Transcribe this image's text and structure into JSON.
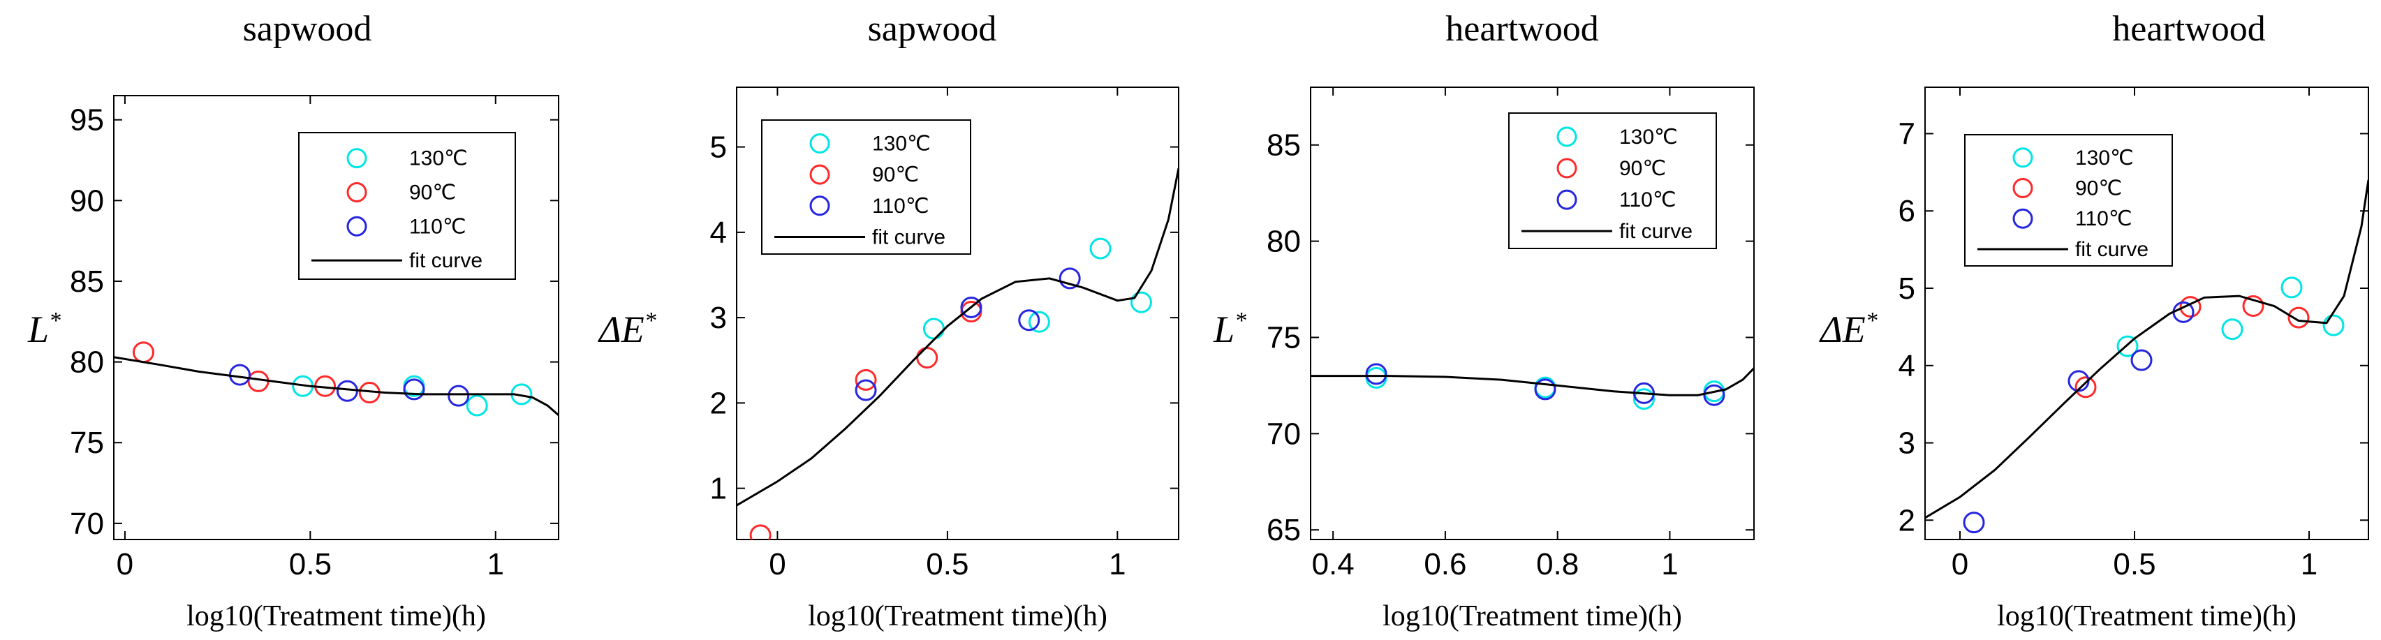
{
  "colors": {
    "c130": "#00e5e5",
    "c90": "#ff2a2a",
    "c110": "#2626e0",
    "fit": "#000000"
  },
  "chart_data": [
    {
      "type": "scatter",
      "title": "sapwood",
      "xlabel": "log10(Treatment time)(h)",
      "ylabel_main": "L",
      "ylabel_sup": "*",
      "xlim": [
        -0.03,
        1.17
      ],
      "ylim": [
        69,
        96.5
      ],
      "xticks": [
        0,
        0.5,
        1
      ],
      "xtick_labels": [
        "0",
        "0.5",
        "1"
      ],
      "yticks": [
        70,
        75,
        80,
        85,
        90,
        95
      ],
      "ytick_labels": [
        "70",
        "75",
        "80",
        "85",
        "90",
        "95"
      ],
      "legend": [
        "130℃",
        "90℃",
        "110℃",
        "fit curve"
      ],
      "legend_position": "top-right",
      "series": [
        {
          "name": "130℃",
          "color_key": "c130",
          "points": [
            [
              0.48,
              78.5
            ],
            [
              0.78,
              78.5
            ],
            [
              0.95,
              77.3
            ],
            [
              1.07,
              78.0
            ]
          ]
        },
        {
          "name": "90℃",
          "color_key": "c90",
          "points": [
            [
              0.05,
              80.6
            ],
            [
              0.36,
              78.8
            ],
            [
              0.54,
              78.5
            ],
            [
              0.66,
              78.1
            ]
          ]
        },
        {
          "name": "110℃",
          "color_key": "c110",
          "points": [
            [
              0.31,
              79.2
            ],
            [
              0.6,
              78.2
            ],
            [
              0.78,
              78.3
            ],
            [
              0.9,
              77.9
            ]
          ]
        },
        {
          "name": "fit curve",
          "color_key": "fit",
          "line": true,
          "points": [
            [
              -0.03,
              80.3
            ],
            [
              0.1,
              79.8
            ],
            [
              0.2,
              79.4
            ],
            [
              0.3,
              79.1
            ],
            [
              0.4,
              78.8
            ],
            [
              0.5,
              78.5
            ],
            [
              0.6,
              78.3
            ],
            [
              0.7,
              78.1
            ],
            [
              0.8,
              78.0
            ],
            [
              0.9,
              78.0
            ],
            [
              1.0,
              78.0
            ],
            [
              1.05,
              78.0
            ],
            [
              1.1,
              77.8
            ],
            [
              1.14,
              77.3
            ],
            [
              1.17,
              76.7
            ]
          ]
        }
      ]
    },
    {
      "type": "scatter",
      "title": "sapwood",
      "xlabel": "log10(Treatment time)(h)",
      "ylabel_main": "ΔE",
      "ylabel_sup": "*",
      "xlim": [
        -0.12,
        1.18
      ],
      "ylim": [
        0.4,
        5.7
      ],
      "xticks": [
        0,
        0.5,
        1
      ],
      "xtick_labels": [
        "0",
        "0.5",
        "1"
      ],
      "yticks": [
        1,
        2,
        3,
        4,
        5
      ],
      "ytick_labels": [
        "1",
        "2",
        "3",
        "4",
        "5"
      ],
      "legend": [
        "130℃",
        "90℃",
        "110℃",
        "fit curve"
      ],
      "legend_position": "top-left",
      "series": [
        {
          "name": "130℃",
          "color_key": "c130",
          "points": [
            [
              0.46,
              2.87
            ],
            [
              0.77,
              2.95
            ],
            [
              0.95,
              3.81
            ],
            [
              1.07,
              3.18
            ]
          ]
        },
        {
          "name": "90℃",
          "color_key": "c90",
          "points": [
            [
              -0.05,
              0.45
            ],
            [
              0.26,
              2.27
            ],
            [
              0.44,
              2.53
            ],
            [
              0.57,
              3.07
            ]
          ]
        },
        {
          "name": "110℃",
          "color_key": "c110",
          "points": [
            [
              0.26,
              2.15
            ],
            [
              0.57,
              3.12
            ],
            [
              0.74,
              2.97
            ],
            [
              0.86,
              3.46
            ]
          ]
        },
        {
          "name": "fit curve",
          "color_key": "fit",
          "line": true,
          "points": [
            [
              -0.12,
              0.8
            ],
            [
              0.0,
              1.08
            ],
            [
              0.1,
              1.35
            ],
            [
              0.2,
              1.7
            ],
            [
              0.3,
              2.08
            ],
            [
              0.4,
              2.5
            ],
            [
              0.5,
              2.9
            ],
            [
              0.6,
              3.22
            ],
            [
              0.7,
              3.42
            ],
            [
              0.8,
              3.46
            ],
            [
              0.9,
              3.35
            ],
            [
              1.0,
              3.2
            ],
            [
              1.05,
              3.23
            ],
            [
              1.1,
              3.55
            ],
            [
              1.15,
              4.15
            ],
            [
              1.18,
              4.75
            ]
          ]
        }
      ]
    },
    {
      "type": "scatter",
      "title": "heartwood",
      "xlabel": "log10(Treatment time)(h)",
      "ylabel_main": "L",
      "ylabel_sup": "*",
      "xlim": [
        0.36,
        1.15
      ],
      "ylim": [
        64.5,
        88
      ],
      "xticks": [
        0.4,
        0.6,
        0.8,
        1
      ],
      "xtick_labels": [
        "0.4",
        "0.6",
        "0.8",
        "1"
      ],
      "yticks": [
        65,
        70,
        75,
        80,
        85
      ],
      "ytick_labels": [
        "65",
        "70",
        "75",
        "80",
        "85"
      ],
      "legend": [
        "130℃",
        "90℃",
        "110℃",
        "fit curve"
      ],
      "legend_position": "top-right",
      "series": [
        {
          "name": "130℃",
          "color_key": "c130",
          "points": [
            [
              0.477,
              72.9
            ],
            [
              0.778,
              72.4
            ],
            [
              0.954,
              71.8
            ],
            [
              1.079,
              72.2
            ]
          ]
        },
        {
          "name": "90℃",
          "color_key": "c90",
          "points": []
        },
        {
          "name": "110℃",
          "color_key": "c110",
          "points": [
            [
              0.477,
              73.1
            ],
            [
              0.778,
              72.3
            ],
            [
              0.954,
              72.1
            ],
            [
              1.079,
              72.0
            ]
          ]
        },
        {
          "name": "fit curve",
          "color_key": "fit",
          "line": true,
          "points": [
            [
              0.36,
              73.0
            ],
            [
              0.5,
              73.0
            ],
            [
              0.6,
              72.95
            ],
            [
              0.7,
              72.8
            ],
            [
              0.8,
              72.5
            ],
            [
              0.9,
              72.2
            ],
            [
              1.0,
              72.0
            ],
            [
              1.05,
              72.0
            ],
            [
              1.1,
              72.3
            ],
            [
              1.13,
              72.8
            ],
            [
              1.15,
              73.4
            ]
          ]
        }
      ]
    },
    {
      "type": "scatter",
      "title": "heartwood",
      "xlabel": "log10(Treatment time)(h)",
      "ylabel_main": "ΔE",
      "ylabel_sup": "*",
      "xlim": [
        -0.1,
        1.17
      ],
      "ylim": [
        1.75,
        7.6
      ],
      "xticks": [
        0,
        0.5,
        1
      ],
      "xtick_labels": [
        "0",
        "0.5",
        "1"
      ],
      "yticks": [
        2,
        3,
        4,
        5,
        6,
        7
      ],
      "ytick_labels": [
        "2",
        "3",
        "4",
        "5",
        "6",
        "7"
      ],
      "legend": [
        "130℃",
        "90℃",
        "110℃",
        "fit curve"
      ],
      "legend_position": "top-left",
      "series": [
        {
          "name": "130℃",
          "color_key": "c130",
          "points": [
            [
              0.48,
              4.25
            ],
            [
              0.78,
              4.47
            ],
            [
              0.95,
              5.01
            ],
            [
              1.07,
              4.52
            ]
          ]
        },
        {
          "name": "90℃",
          "color_key": "c90",
          "points": [
            [
              0.36,
              3.72
            ],
            [
              0.66,
              4.76
            ],
            [
              0.84,
              4.77
            ],
            [
              0.97,
              4.62
            ]
          ]
        },
        {
          "name": "110℃",
          "color_key": "c110",
          "points": [
            [
              0.04,
              1.97
            ],
            [
              0.34,
              3.8
            ],
            [
              0.52,
              4.07
            ],
            [
              0.64,
              4.69
            ]
          ]
        },
        {
          "name": "fit curve",
          "color_key": "fit",
          "line": true,
          "points": [
            [
              -0.1,
              2.03
            ],
            [
              0.0,
              2.3
            ],
            [
              0.1,
              2.65
            ],
            [
              0.2,
              3.08
            ],
            [
              0.3,
              3.52
            ],
            [
              0.4,
              3.95
            ],
            [
              0.5,
              4.35
            ],
            [
              0.6,
              4.67
            ],
            [
              0.7,
              4.88
            ],
            [
              0.8,
              4.9
            ],
            [
              0.9,
              4.77
            ],
            [
              0.97,
              4.58
            ],
            [
              1.05,
              4.55
            ],
            [
              1.1,
              4.9
            ],
            [
              1.15,
              5.8
            ],
            [
              1.17,
              6.4
            ]
          ]
        }
      ]
    }
  ]
}
